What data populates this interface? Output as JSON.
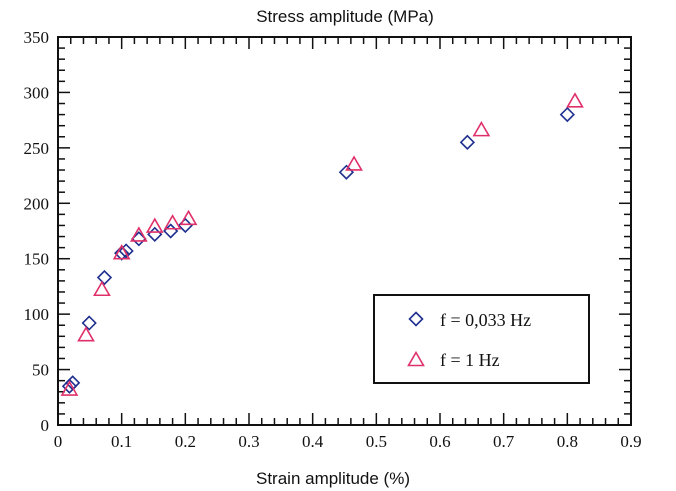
{
  "chart_data": {
    "type": "scatter",
    "title": "Stress amplitude  (MPa)",
    "xlabel": "Strain amplitude  (%)",
    "ylabel": "",
    "xlim": [
      0,
      0.9
    ],
    "ylim": [
      0,
      350
    ],
    "x_ticks": [
      "0",
      "0.1",
      "0.2",
      "0.3",
      "0.4",
      "0.5",
      "0.6",
      "0.7",
      "0.8",
      "0.9"
    ],
    "y_ticks": [
      "0",
      "50",
      "100",
      "150",
      "200",
      "250",
      "300",
      "350"
    ],
    "grid": false,
    "legend_position": "bottom-right",
    "series": [
      {
        "name": "f = 0,033 Hz",
        "marker": "diamond",
        "color": "#1f2f8f",
        "points": [
          [
            0.018,
            35
          ],
          [
            0.023,
            38
          ],
          [
            0.049,
            92
          ],
          [
            0.073,
            133
          ],
          [
            0.1,
            155
          ],
          [
            0.107,
            157
          ],
          [
            0.127,
            168
          ],
          [
            0.152,
            172
          ],
          [
            0.177,
            175
          ],
          [
            0.2,
            180
          ],
          [
            0.453,
            228
          ],
          [
            0.643,
            255
          ],
          [
            0.8,
            280
          ]
        ]
      },
      {
        "name": "f = 1 Hz",
        "marker": "triangle",
        "color": "#e0306a",
        "points": [
          [
            0.018,
            32
          ],
          [
            0.044,
            81
          ],
          [
            0.069,
            122
          ],
          [
            0.1,
            155
          ],
          [
            0.127,
            171
          ],
          [
            0.152,
            179
          ],
          [
            0.18,
            182
          ],
          [
            0.205,
            186
          ],
          [
            0.465,
            235
          ],
          [
            0.665,
            266
          ],
          [
            0.812,
            292
          ]
        ]
      }
    ]
  }
}
